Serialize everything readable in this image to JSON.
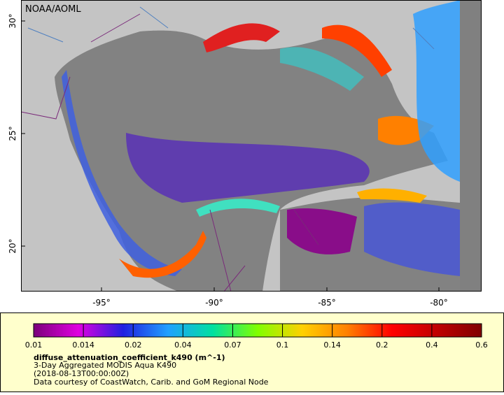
{
  "map": {
    "title": "NOAA/AOML",
    "lat_ticks": [
      "30°",
      "25°",
      "20°"
    ],
    "lon_ticks": [
      "-95°",
      "-90°",
      "-85°",
      "-80°"
    ]
  },
  "colorbar": {
    "ticks": [
      0.01,
      0.014,
      0.02,
      0.04,
      0.07,
      0.1,
      0.14,
      0.2,
      0.4,
      0.6
    ],
    "variable": "diffuse_attenuation_coefficient_k490 (m^-1)",
    "lines": [
      "3-Day Aggregated MODIS Aqua K490",
      "(2018-08-13T00:00:00Z)",
      "Data courtesy of CoastWatch, Carib. and GoM Regional Node"
    ]
  }
}
